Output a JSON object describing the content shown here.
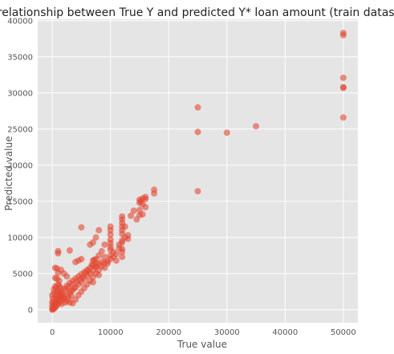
{
  "chart_data": {
    "type": "scatter",
    "title": "relationship between True Y and predicted Y* loan amount (train dataset)",
    "xlabel": "True value",
    "ylabel": "Predicted value",
    "xlim": [
      -2500,
      52500
    ],
    "ylim": [
      -1800,
      40200
    ],
    "xticks": [
      0,
      10000,
      20000,
      30000,
      40000,
      50000
    ],
    "yticks": [
      0,
      5000,
      10000,
      15000,
      20000,
      25000,
      30000,
      35000,
      40000
    ],
    "grid": true,
    "background_color": "#e5e5e5",
    "grid_color": "#ffffff",
    "point_color": "#e24a33",
    "point_opacity": 0.6,
    "points": [
      [
        50000,
        38300
      ],
      [
        50000,
        38000
      ],
      [
        50000,
        32100
      ],
      [
        50000,
        30800
      ],
      [
        50000,
        30700
      ],
      [
        50000,
        26600
      ],
      [
        25000,
        28000
      ],
      [
        25000,
        24600
      ],
      [
        25000,
        16400
      ],
      [
        30000,
        24500
      ],
      [
        35000,
        25400
      ],
      [
        17500,
        16600
      ],
      [
        17500,
        16100
      ],
      [
        16000,
        15600
      ],
      [
        15500,
        15400
      ],
      [
        15000,
        15200
      ],
      [
        15000,
        14800
      ],
      [
        15500,
        14600
      ],
      [
        16000,
        14200
      ],
      [
        15000,
        13800
      ],
      [
        15500,
        13200
      ],
      [
        15000,
        13100
      ],
      [
        14000,
        13700
      ],
      [
        12000,
        12900
      ],
      [
        12000,
        12500
      ],
      [
        12000,
        12000
      ],
      [
        12000,
        11500
      ],
      [
        12000,
        11000
      ],
      [
        12000,
        10500
      ],
      [
        12500,
        10000
      ],
      [
        13000,
        10300
      ],
      [
        12000,
        9600
      ],
      [
        11500,
        9000
      ],
      [
        12000,
        8400
      ],
      [
        12000,
        8000
      ],
      [
        10000,
        11500
      ],
      [
        10000,
        11000
      ],
      [
        10000,
        10400
      ],
      [
        10000,
        9700
      ],
      [
        10000,
        9200
      ],
      [
        10000,
        8700
      ],
      [
        10000,
        8300
      ],
      [
        10500,
        8000
      ],
      [
        11000,
        7700
      ],
      [
        12000,
        7300
      ],
      [
        10000,
        7500
      ],
      [
        10000,
        7000
      ],
      [
        9500,
        6700
      ],
      [
        9000,
        7300
      ],
      [
        8500,
        8100
      ],
      [
        8000,
        7500
      ],
      [
        7500,
        7000
      ],
      [
        7000,
        6800
      ],
      [
        7500,
        6400
      ],
      [
        7500,
        6000
      ],
      [
        7000,
        6100
      ],
      [
        6500,
        5800
      ],
      [
        6000,
        5500
      ],
      [
        5500,
        5200
      ],
      [
        5000,
        4900
      ],
      [
        4500,
        4600
      ],
      [
        4000,
        4300
      ],
      [
        3500,
        4000
      ],
      [
        3000,
        3700
      ],
      [
        2500,
        3300
      ],
      [
        2000,
        2900
      ],
      [
        1500,
        2400
      ],
      [
        1000,
        1900
      ],
      [
        800,
        1500
      ],
      [
        500,
        1100
      ],
      [
        300,
        700
      ],
      [
        200,
        400
      ],
      [
        100,
        200
      ],
      [
        0,
        0
      ],
      [
        100,
        50
      ],
      [
        200,
        100
      ],
      [
        300,
        200
      ],
      [
        500,
        300
      ],
      [
        700,
        500
      ],
      [
        1000,
        800
      ],
      [
        1200,
        1000
      ],
      [
        1500,
        1300
      ],
      [
        1800,
        1600
      ],
      [
        2000,
        1800
      ],
      [
        2500,
        2000
      ],
      [
        3000,
        2300
      ],
      [
        3500,
        2700
      ],
      [
        4000,
        3100
      ],
      [
        4500,
        3500
      ],
      [
        5000,
        3800
      ],
      [
        5500,
        4300
      ],
      [
        6000,
        4700
      ],
      [
        6500,
        5000
      ],
      [
        7000,
        5400
      ],
      [
        7500,
        5900
      ],
      [
        8000,
        6300
      ],
      [
        8500,
        6600
      ],
      [
        9000,
        6500
      ],
      [
        9500,
        6400
      ],
      [
        5000,
        11400
      ],
      [
        8000,
        11000
      ],
      [
        7500,
        10000
      ],
      [
        7000,
        9300
      ],
      [
        6500,
        9000
      ],
      [
        5000,
        7000
      ],
      [
        4000,
        6600
      ],
      [
        4500,
        6800
      ],
      [
        3000,
        8200
      ],
      [
        1000,
        8100
      ],
      [
        1000,
        7800
      ],
      [
        800,
        5700
      ],
      [
        500,
        5800
      ],
      [
        1500,
        5500
      ],
      [
        2000,
        5000
      ],
      [
        1000,
        5100
      ],
      [
        2500,
        4600
      ],
      [
        500,
        4400
      ],
      [
        800,
        4300
      ],
      [
        1200,
        4000
      ],
      [
        1000,
        3500
      ],
      [
        500,
        3200
      ],
      [
        300,
        2800
      ],
      [
        800,
        2500
      ],
      [
        1500,
        2000
      ],
      [
        2000,
        1500
      ],
      [
        2500,
        1200
      ],
      [
        3000,
        1000
      ],
      [
        3500,
        900
      ],
      [
        4000,
        1400
      ],
      [
        4500,
        2000
      ],
      [
        5000,
        2500
      ],
      [
        5500,
        3000
      ],
      [
        6000,
        3500
      ],
      [
        6500,
        4000
      ],
      [
        7000,
        4500
      ],
      [
        7500,
        5000
      ],
      [
        8000,
        5500
      ],
      [
        8500,
        6000
      ],
      [
        3200,
        2600
      ],
      [
        3800,
        3000
      ],
      [
        4200,
        3900
      ],
      [
        4800,
        4200
      ],
      [
        5200,
        4500
      ],
      [
        5800,
        5100
      ],
      [
        6200,
        5400
      ],
      [
        6800,
        6200
      ],
      [
        7200,
        6900
      ],
      [
        1600,
        800
      ],
      [
        2200,
        1000
      ],
      [
        2800,
        1600
      ],
      [
        3300,
        1900
      ],
      [
        600,
        900
      ],
      [
        400,
        600
      ],
      [
        900,
        1300
      ],
      [
        1300,
        1700
      ],
      [
        1700,
        2200
      ],
      [
        2300,
        2700
      ],
      [
        2700,
        3100
      ],
      [
        3400,
        3500
      ],
      [
        200,
        1000
      ],
      [
        600,
        1600
      ],
      [
        900,
        2100
      ],
      [
        1100,
        2600
      ],
      [
        1400,
        3000
      ],
      [
        0,
        500
      ],
      [
        0,
        1000
      ],
      [
        100,
        1500
      ],
      [
        0,
        2000
      ],
      [
        300,
        2300
      ],
      [
        700,
        3000
      ],
      [
        1200,
        3300
      ],
      [
        12000,
        9300
      ],
      [
        13000,
        9800
      ],
      [
        11000,
        6800
      ],
      [
        9000,
        5800
      ],
      [
        8000,
        4800
      ],
      [
        7000,
        3800
      ],
      [
        9000,
        9000
      ],
      [
        10500,
        7300
      ],
      [
        11500,
        8500
      ],
      [
        12500,
        11500
      ],
      [
        13500,
        13000
      ],
      [
        14500,
        12500
      ],
      [
        16000,
        15300
      ],
      [
        15200,
        15000
      ]
    ]
  }
}
